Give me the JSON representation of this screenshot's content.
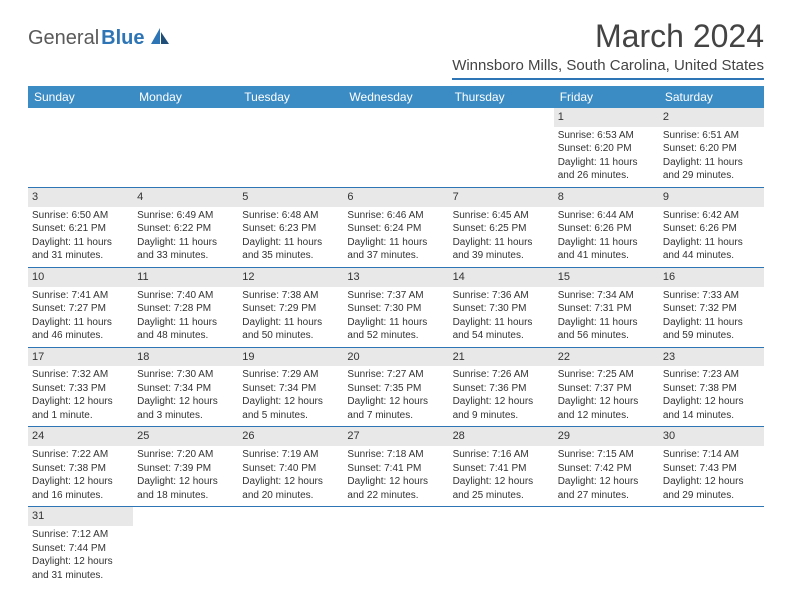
{
  "logo": {
    "general": "General",
    "blue": "Blue"
  },
  "title": "March 2024",
  "location": "Winnsboro Mills, South Carolina, United States",
  "colors": {
    "header_bar": "#3b8bc4",
    "accent_line": "#2e75b6",
    "daynum_bg": "#e8e8e8"
  },
  "weekdays": [
    "Sunday",
    "Monday",
    "Tuesday",
    "Wednesday",
    "Thursday",
    "Friday",
    "Saturday"
  ],
  "weeks": [
    [
      null,
      null,
      null,
      null,
      null,
      {
        "n": "1",
        "sr": "Sunrise: 6:53 AM",
        "ss": "Sunset: 6:20 PM",
        "dl": "Daylight: 11 hours and 26 minutes."
      },
      {
        "n": "2",
        "sr": "Sunrise: 6:51 AM",
        "ss": "Sunset: 6:20 PM",
        "dl": "Daylight: 11 hours and 29 minutes."
      }
    ],
    [
      {
        "n": "3",
        "sr": "Sunrise: 6:50 AM",
        "ss": "Sunset: 6:21 PM",
        "dl": "Daylight: 11 hours and 31 minutes."
      },
      {
        "n": "4",
        "sr": "Sunrise: 6:49 AM",
        "ss": "Sunset: 6:22 PM",
        "dl": "Daylight: 11 hours and 33 minutes."
      },
      {
        "n": "5",
        "sr": "Sunrise: 6:48 AM",
        "ss": "Sunset: 6:23 PM",
        "dl": "Daylight: 11 hours and 35 minutes."
      },
      {
        "n": "6",
        "sr": "Sunrise: 6:46 AM",
        "ss": "Sunset: 6:24 PM",
        "dl": "Daylight: 11 hours and 37 minutes."
      },
      {
        "n": "7",
        "sr": "Sunrise: 6:45 AM",
        "ss": "Sunset: 6:25 PM",
        "dl": "Daylight: 11 hours and 39 minutes."
      },
      {
        "n": "8",
        "sr": "Sunrise: 6:44 AM",
        "ss": "Sunset: 6:26 PM",
        "dl": "Daylight: 11 hours and 41 minutes."
      },
      {
        "n": "9",
        "sr": "Sunrise: 6:42 AM",
        "ss": "Sunset: 6:26 PM",
        "dl": "Daylight: 11 hours and 44 minutes."
      }
    ],
    [
      {
        "n": "10",
        "sr": "Sunrise: 7:41 AM",
        "ss": "Sunset: 7:27 PM",
        "dl": "Daylight: 11 hours and 46 minutes."
      },
      {
        "n": "11",
        "sr": "Sunrise: 7:40 AM",
        "ss": "Sunset: 7:28 PM",
        "dl": "Daylight: 11 hours and 48 minutes."
      },
      {
        "n": "12",
        "sr": "Sunrise: 7:38 AM",
        "ss": "Sunset: 7:29 PM",
        "dl": "Daylight: 11 hours and 50 minutes."
      },
      {
        "n": "13",
        "sr": "Sunrise: 7:37 AM",
        "ss": "Sunset: 7:30 PM",
        "dl": "Daylight: 11 hours and 52 minutes."
      },
      {
        "n": "14",
        "sr": "Sunrise: 7:36 AM",
        "ss": "Sunset: 7:30 PM",
        "dl": "Daylight: 11 hours and 54 minutes."
      },
      {
        "n": "15",
        "sr": "Sunrise: 7:34 AM",
        "ss": "Sunset: 7:31 PM",
        "dl": "Daylight: 11 hours and 56 minutes."
      },
      {
        "n": "16",
        "sr": "Sunrise: 7:33 AM",
        "ss": "Sunset: 7:32 PM",
        "dl": "Daylight: 11 hours and 59 minutes."
      }
    ],
    [
      {
        "n": "17",
        "sr": "Sunrise: 7:32 AM",
        "ss": "Sunset: 7:33 PM",
        "dl": "Daylight: 12 hours and 1 minute."
      },
      {
        "n": "18",
        "sr": "Sunrise: 7:30 AM",
        "ss": "Sunset: 7:34 PM",
        "dl": "Daylight: 12 hours and 3 minutes."
      },
      {
        "n": "19",
        "sr": "Sunrise: 7:29 AM",
        "ss": "Sunset: 7:34 PM",
        "dl": "Daylight: 12 hours and 5 minutes."
      },
      {
        "n": "20",
        "sr": "Sunrise: 7:27 AM",
        "ss": "Sunset: 7:35 PM",
        "dl": "Daylight: 12 hours and 7 minutes."
      },
      {
        "n": "21",
        "sr": "Sunrise: 7:26 AM",
        "ss": "Sunset: 7:36 PM",
        "dl": "Daylight: 12 hours and 9 minutes."
      },
      {
        "n": "22",
        "sr": "Sunrise: 7:25 AM",
        "ss": "Sunset: 7:37 PM",
        "dl": "Daylight: 12 hours and 12 minutes."
      },
      {
        "n": "23",
        "sr": "Sunrise: 7:23 AM",
        "ss": "Sunset: 7:38 PM",
        "dl": "Daylight: 12 hours and 14 minutes."
      }
    ],
    [
      {
        "n": "24",
        "sr": "Sunrise: 7:22 AM",
        "ss": "Sunset: 7:38 PM",
        "dl": "Daylight: 12 hours and 16 minutes."
      },
      {
        "n": "25",
        "sr": "Sunrise: 7:20 AM",
        "ss": "Sunset: 7:39 PM",
        "dl": "Daylight: 12 hours and 18 minutes."
      },
      {
        "n": "26",
        "sr": "Sunrise: 7:19 AM",
        "ss": "Sunset: 7:40 PM",
        "dl": "Daylight: 12 hours and 20 minutes."
      },
      {
        "n": "27",
        "sr": "Sunrise: 7:18 AM",
        "ss": "Sunset: 7:41 PM",
        "dl": "Daylight: 12 hours and 22 minutes."
      },
      {
        "n": "28",
        "sr": "Sunrise: 7:16 AM",
        "ss": "Sunset: 7:41 PM",
        "dl": "Daylight: 12 hours and 25 minutes."
      },
      {
        "n": "29",
        "sr": "Sunrise: 7:15 AM",
        "ss": "Sunset: 7:42 PM",
        "dl": "Daylight: 12 hours and 27 minutes."
      },
      {
        "n": "30",
        "sr": "Sunrise: 7:14 AM",
        "ss": "Sunset: 7:43 PM",
        "dl": "Daylight: 12 hours and 29 minutes."
      }
    ],
    [
      {
        "n": "31",
        "sr": "Sunrise: 7:12 AM",
        "ss": "Sunset: 7:44 PM",
        "dl": "Daylight: 12 hours and 31 minutes."
      },
      null,
      null,
      null,
      null,
      null,
      null
    ]
  ]
}
